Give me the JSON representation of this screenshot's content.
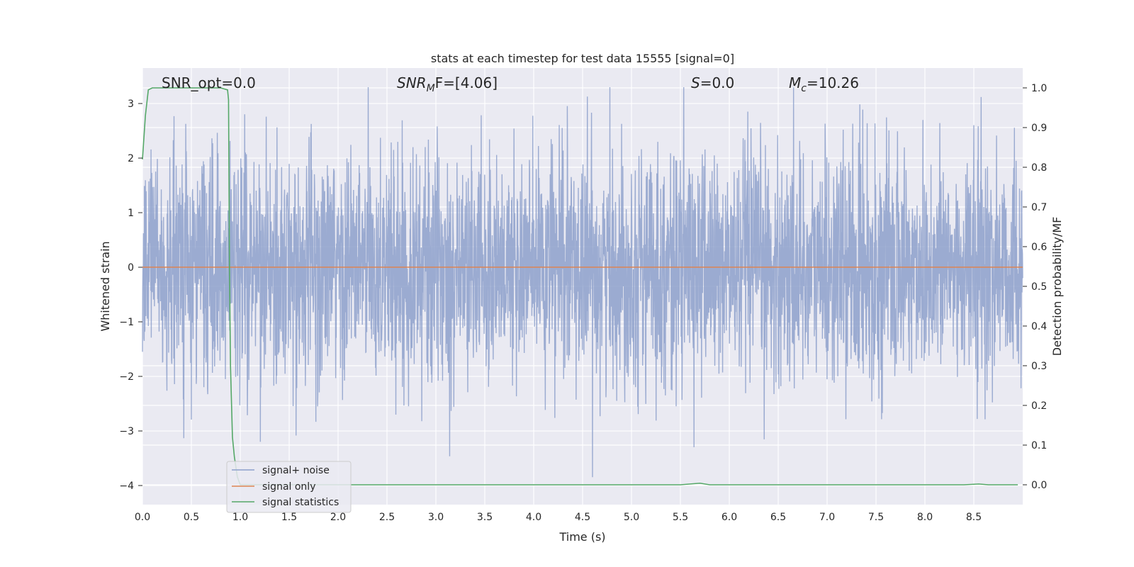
{
  "chart_data": {
    "type": "line",
    "title": "stats at each timestep for test data 15555 [signal=0]",
    "xlabel": "Time (s)",
    "ylabel_left": "Whitened strain",
    "ylabel_right": "Detection probability/MF",
    "xlim": [
      0.0,
      9.0
    ],
    "ylim_left": [
      -4.35,
      3.65
    ],
    "ylim_right": [
      -0.05,
      1.05
    ],
    "x_ticks": [
      0.0,
      0.5,
      1.0,
      1.5,
      2.0,
      2.5,
      3.0,
      3.5,
      4.0,
      4.5,
      5.0,
      5.5,
      6.0,
      6.5,
      7.0,
      7.5,
      8.0,
      8.5
    ],
    "x_tick_labels": [
      "0.0",
      "0.5",
      "1.0",
      "1.5",
      "2.0",
      "2.5",
      "3.0",
      "3.5",
      "4.0",
      "4.5",
      "5.0",
      "5.5",
      "6.0",
      "6.5",
      "7.0",
      "7.5",
      "8.0",
      "8.5"
    ],
    "y_left_ticks": [
      3,
      2,
      1,
      0,
      -1,
      -2,
      -3,
      -4
    ],
    "y_left_tick_labels": [
      "3",
      "2",
      "1",
      "0",
      "−1",
      "−2",
      "−3",
      "−4"
    ],
    "y_right_ticks": [
      1.0,
      0.9,
      0.8,
      0.7,
      0.6,
      0.5,
      0.4,
      0.3,
      0.2,
      0.1,
      0.0
    ],
    "y_right_tick_labels": [
      "1.0",
      "0.9",
      "0.8",
      "0.7",
      "0.6",
      "0.5",
      "0.4",
      "0.3",
      "0.2",
      "0.1",
      "0.0"
    ],
    "grid": true,
    "legend_position": "lower-left",
    "annotations": {
      "snr_opt": "SNR_opt=0.0",
      "snr_mf_main": "SNR",
      "snr_mf_sub": "M",
      "snr_mf_rest": "F=[4.06]",
      "s_main": "S",
      "s_rest": "=0.0",
      "mc_main": "M",
      "mc_sub": "c",
      "mc_rest": "=10.26"
    },
    "series": [
      {
        "name": "signal+ noise",
        "color": "#8da0cb",
        "axis": "left",
        "kind": "dense-noise",
        "duration": 9.0,
        "std": 1.0,
        "min": -4.0,
        "max": 3.3
      },
      {
        "name": "signal only",
        "color": "#dd8452",
        "axis": "left",
        "x": [
          0.0,
          9.0
        ],
        "y": [
          0.0,
          0.0
        ]
      },
      {
        "name": "signal statistics",
        "color": "#55a868",
        "axis": "right",
        "x": [
          0.0,
          0.03,
          0.06,
          0.1,
          0.2,
          0.5,
          0.8,
          0.87,
          0.88,
          0.89,
          0.9,
          0.92,
          0.94,
          0.97,
          1.0,
          5.5,
          5.6,
          5.7,
          5.8,
          8.4,
          8.55,
          8.65,
          8.95
        ],
        "y": [
          0.82,
          0.93,
          0.995,
          1.0,
          1.0,
          1.0,
          1.0,
          0.995,
          0.97,
          0.55,
          0.3,
          0.12,
          0.07,
          0.02,
          0.0,
          0.0,
          0.002,
          0.004,
          0.0,
          0.0,
          0.002,
          0.0,
          0.0
        ]
      }
    ]
  }
}
